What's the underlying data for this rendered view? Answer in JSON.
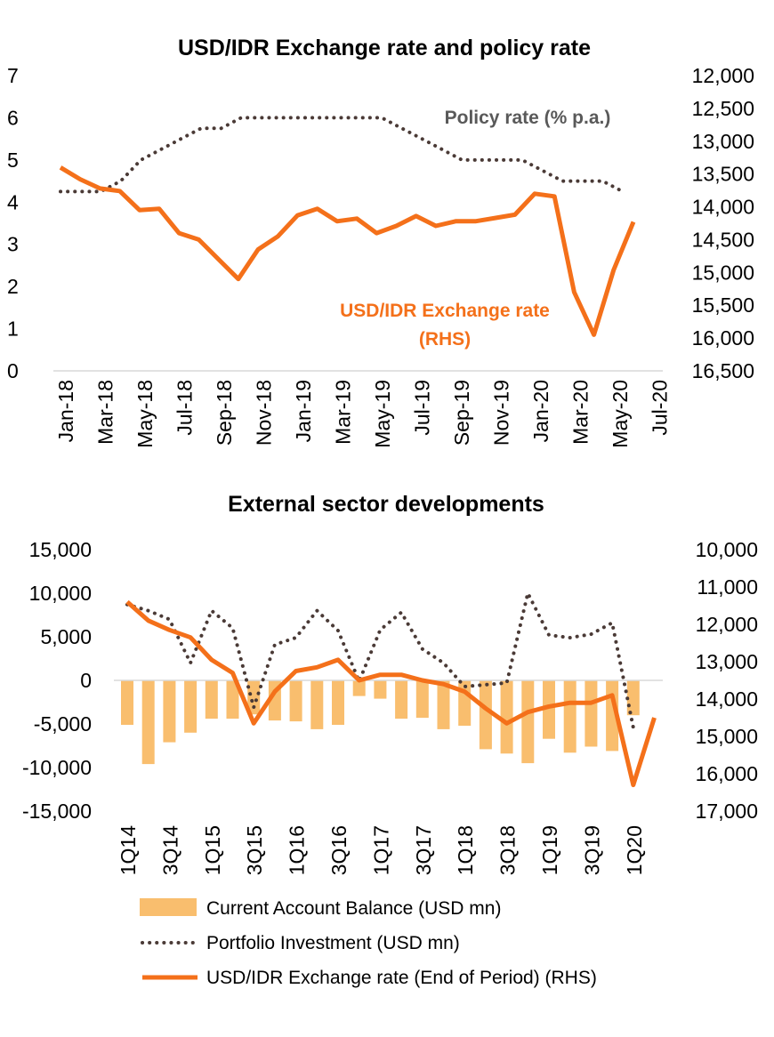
{
  "chart_data": [
    {
      "type": "line",
      "title": "USD/IDR Exchange rate and policy rate",
      "x_tick_labels": [
        "Jan-18",
        "Mar-18",
        "May-18",
        "Jul-18",
        "Sep-18",
        "Nov-18",
        "Jan-19",
        "Mar-19",
        "May-19",
        "Jul-19",
        "Sep-19",
        "Nov-19",
        "Jan-20",
        "Mar-20",
        "May-20",
        "Jul-20"
      ],
      "y_left": {
        "min": 0,
        "max": 7,
        "ticks": [
          "0",
          "1",
          "2",
          "3",
          "4",
          "5",
          "6",
          "7"
        ]
      },
      "y_right": {
        "min": 12000,
        "max": 16500,
        "inverted": true,
        "ticks": [
          "12,000",
          "12,500",
          "13,000",
          "13,500",
          "14,000",
          "14,500",
          "15,000",
          "15,500",
          "16,000",
          "16,500"
        ]
      },
      "annotations": {
        "policy": "Policy rate (% p.a.)",
        "fx_line1": "USD/IDR Exchange rate",
        "fx_line2": "(RHS)"
      },
      "series": [
        {
          "name": "Policy rate (% p.a.)",
          "axis": "left",
          "style": "dotted",
          "color": "#4a3a36",
          "values": [
            4.25,
            4.25,
            4.25,
            4.5,
            5.0,
            5.25,
            5.5,
            5.75,
            5.75,
            6.0,
            6.0,
            6.0,
            6.0,
            6.0,
            6.0,
            6.0,
            6.0,
            5.75,
            5.5,
            5.25,
            5.0,
            5.0,
            5.0,
            5.0,
            4.75,
            4.5,
            4.5,
            4.5,
            4.25
          ]
        },
        {
          "name": "USD/IDR Exchange rate (RHS)",
          "axis": "right",
          "style": "solid",
          "color": "#f4701a",
          "values": [
            13400,
            13580,
            13720,
            13760,
            14050,
            14030,
            14400,
            14500,
            14800,
            15100,
            14650,
            14450,
            14130,
            14030,
            14220,
            14180,
            14400,
            14290,
            14140,
            14290,
            14220,
            14220,
            14170,
            14120,
            13800,
            13840,
            15300,
            15950,
            14960,
            14230
          ]
        }
      ]
    },
    {
      "type": "bar+line",
      "title": "External sector developments",
      "x_tick_labels": [
        "1Q14",
        "3Q14",
        "1Q15",
        "3Q15",
        "1Q16",
        "3Q16",
        "1Q17",
        "3Q17",
        "1Q18",
        "3Q18",
        "1Q19",
        "3Q19",
        "1Q20"
      ],
      "y_left": {
        "min": -15000,
        "max": 15000,
        "ticks": [
          "-15,000",
          "-10,000",
          "-5,000",
          "0",
          "5,000",
          "10,000",
          "15,000"
        ]
      },
      "y_right": {
        "min": 10000,
        "max": 17000,
        "inverted": true,
        "ticks": [
          "10,000",
          "11,000",
          "12,000",
          "13,000",
          "14,000",
          "15,000",
          "16,000",
          "17,000"
        ]
      },
      "series": [
        {
          "name": "Current Account Balance (USD mn)",
          "axis": "left",
          "type": "bar",
          "color": "#f9be6e",
          "values": [
            -5100,
            -9600,
            -7100,
            -6000,
            -4400,
            -4400,
            -3900,
            -4600,
            -4700,
            -5600,
            -5100,
            -1800,
            -2100,
            -4400,
            -4300,
            -5600,
            -5200,
            -7900,
            -8400,
            -9500,
            -6700,
            -8300,
            -7600,
            -8100,
            -4000
          ]
        },
        {
          "name": "Portfolio Investment (USD mn)",
          "axis": "left",
          "type": "line",
          "style": "dotted",
          "color": "#4a3a36",
          "values": [
            8700,
            8000,
            7000,
            2000,
            8000,
            6000,
            -3100,
            4100,
            4900,
            8000,
            5700,
            -100,
            5800,
            7800,
            3600,
            2000,
            -700,
            -500,
            -300,
            10000,
            5200,
            4900,
            5300,
            6600,
            -5400
          ]
        },
        {
          "name": "USD/IDR Exchange rate (End of Period) (RHS)",
          "axis": "right",
          "type": "line",
          "style": "solid",
          "color": "#f4701a",
          "values": [
            11400,
            11900,
            12150,
            12350,
            12950,
            13300,
            14650,
            13800,
            13250,
            13150,
            12950,
            13500,
            13350,
            13350,
            13500,
            13600,
            13800,
            14250,
            14650,
            14350,
            14200,
            14100,
            14100,
            13900,
            16300,
            14500
          ]
        }
      ]
    }
  ],
  "legend": [
    {
      "label": "Current Account Balance (USD mn)",
      "kind": "bar"
    },
    {
      "label": "Portfolio Investment (USD mn)",
      "kind": "dotted"
    },
    {
      "label": "USD/IDR Exchange rate (End of Period) (RHS)",
      "kind": "solid"
    }
  ]
}
